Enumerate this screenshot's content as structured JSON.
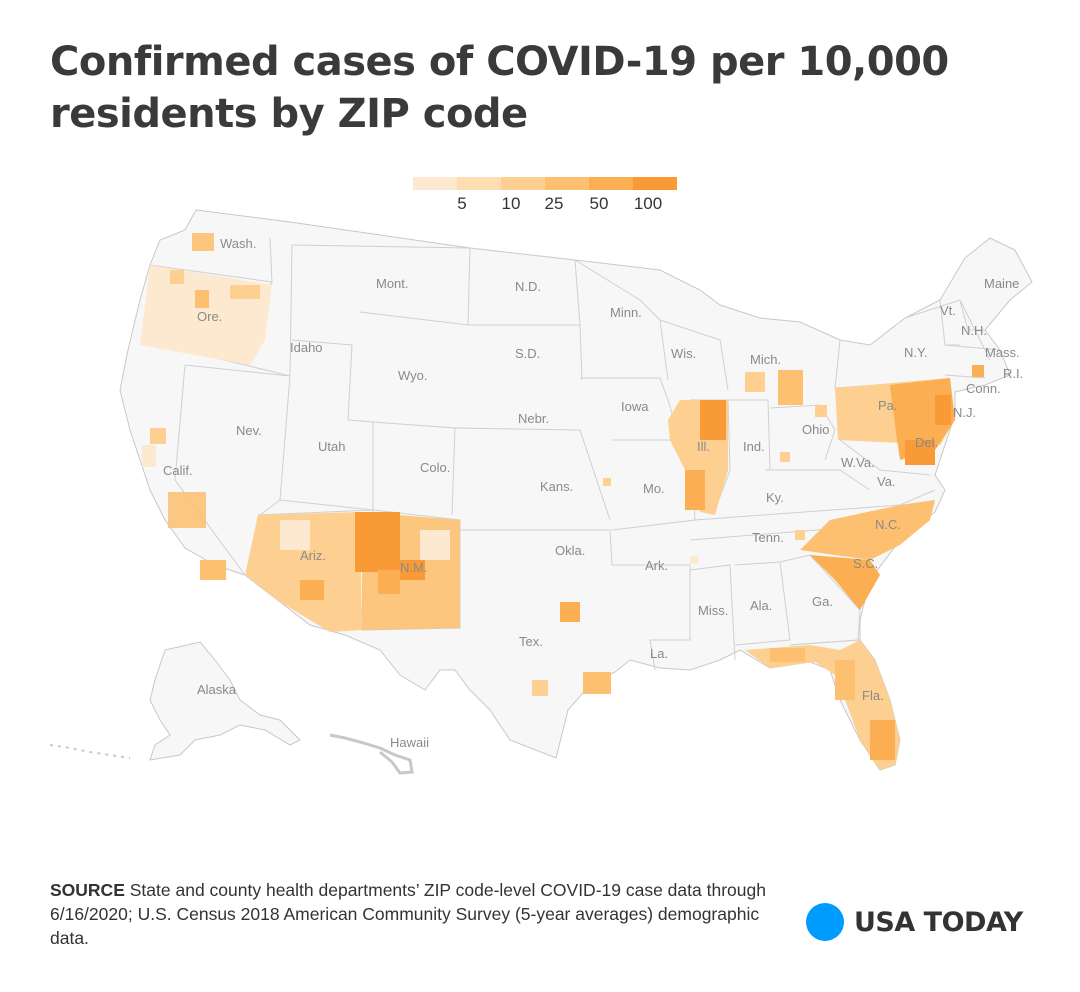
{
  "title": "Confirmed cases of COVID-19 per 10,000 residents by ZIP code",
  "legend": {
    "colors": [
      "#fde9cf",
      "#fdddb1",
      "#fdd091",
      "#fcc070",
      "#fbae52",
      "#f89a36"
    ],
    "labels": [
      "5",
      "10",
      "25",
      "50",
      "100"
    ]
  },
  "map": {
    "land_color": "#f7f7f7",
    "border_color": "#c8c8c8",
    "state_labels": [
      "Wash.",
      "Mont.",
      "N.D.",
      "Minn.",
      "Maine",
      "Ore.",
      "Idaho",
      "Wyo.",
      "S.D.",
      "Wis.",
      "Mich.",
      "N.Y.",
      "Vt.",
      "N.H.",
      "Mass.",
      "R.I.",
      "Conn.",
      "Pa.",
      "N.J.",
      "Del.",
      "Iowa",
      "Nebr.",
      "Ill.",
      "Ind.",
      "Ohio",
      "W.Va.",
      "Va.",
      "Nev.",
      "Utah",
      "Colo.",
      "Kans.",
      "Mo.",
      "Ky.",
      "Calif.",
      "Ariz.",
      "N.M.",
      "Okla.",
      "Ark.",
      "Tenn.",
      "N.C.",
      "S.C.",
      "Miss.",
      "Ala.",
      "Ga.",
      "Tex.",
      "La.",
      "Fla.",
      "Alaska",
      "Hawaii"
    ]
  },
  "source": {
    "lead": "SOURCE",
    "text": "State and county health departments’ ZIP code-level COVID-19 case data through 6/16/2020; U.S. Census 2018 American Community Survey (5-year averages) demographic data."
  },
  "brand": {
    "name": "USA TODAY",
    "color": "#009bff"
  }
}
